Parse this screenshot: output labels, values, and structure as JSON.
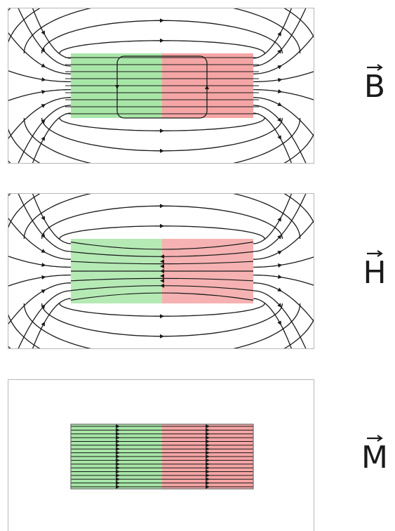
{
  "panels": [
    {
      "id": "b",
      "symbol": "B"
    },
    {
      "id": "h",
      "symbol": "H"
    },
    {
      "id": "m",
      "symbol": "M"
    }
  ],
  "colors": {
    "south_pole": "#a8e6a8",
    "north_pole": "#f5a5a5",
    "field_line": "#1a1a1a",
    "frame": "#b8b8b8"
  }
}
